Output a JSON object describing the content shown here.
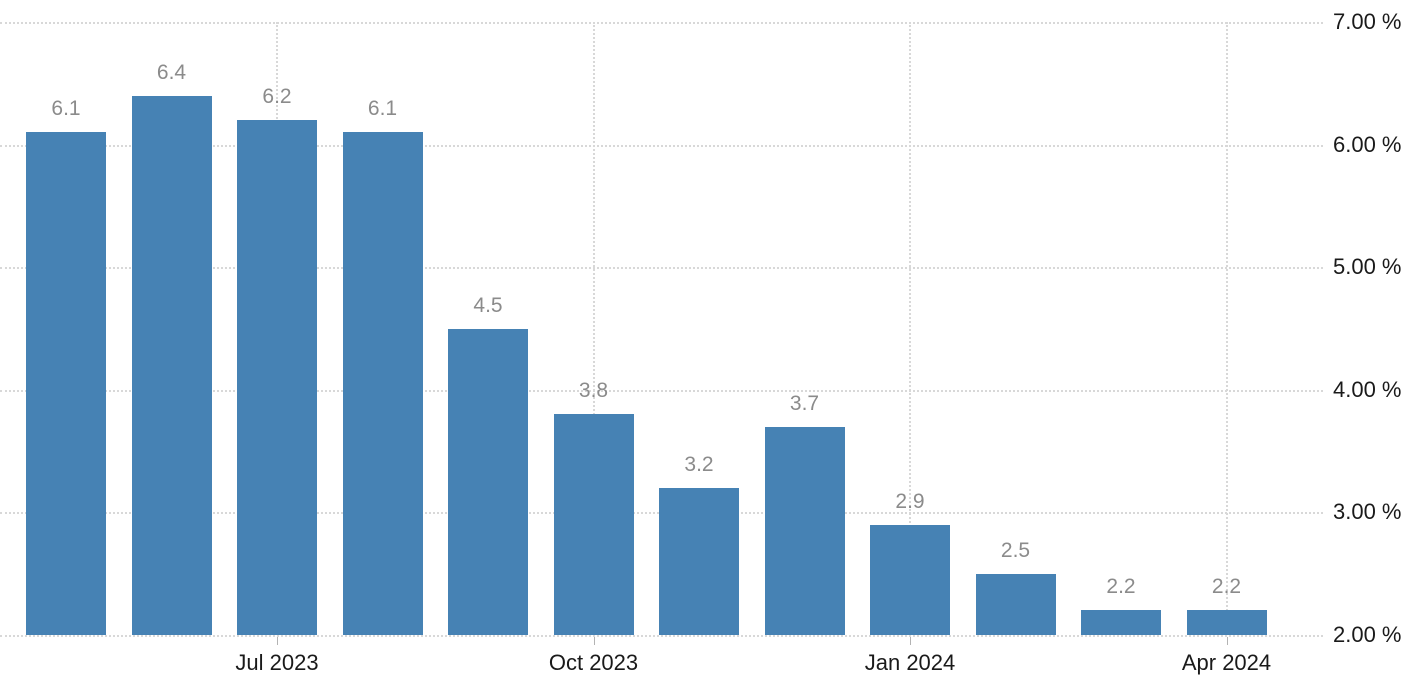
{
  "chart_data": {
    "type": "bar",
    "title": "",
    "values": [
      6.1,
      6.4,
      6.2,
      6.1,
      4.5,
      3.8,
      3.2,
      3.7,
      2.9,
      2.5,
      2.2,
      2.2
    ],
    "bar_labels": [
      "6.1",
      "6.4",
      "6.2",
      "6.1",
      "4.5",
      "3.8",
      "3.2",
      "3.7",
      "2.9",
      "2.5",
      "2.2",
      "2.2"
    ],
    "x_ticks": [
      {
        "label": "Jul 2023",
        "bar_index": 2
      },
      {
        "label": "Oct 2023",
        "bar_index": 5
      },
      {
        "label": "Jan 2024",
        "bar_index": 8
      },
      {
        "label": "Apr 2024",
        "bar_index": 11
      }
    ],
    "y_ticks": [
      {
        "label": "7.00 %",
        "value": 7
      },
      {
        "label": "6.00 %",
        "value": 6
      },
      {
        "label": "5.00 %",
        "value": 5
      },
      {
        "label": "4.00 %",
        "value": 4
      },
      {
        "label": "3.00 %",
        "value": 3
      },
      {
        "label": "2.00 %",
        "value": 2
      }
    ],
    "ylim": [
      2,
      7
    ],
    "y_axis_side": "right",
    "grid": true,
    "legend": false,
    "colors": {
      "bar": "#4682b4",
      "value_label": "#8b8b8b",
      "axis_label": "#1a1a1a",
      "gridline": "#d8d8d8",
      "tick_mark": "#b3b3b3",
      "background": "#ffffff"
    }
  }
}
